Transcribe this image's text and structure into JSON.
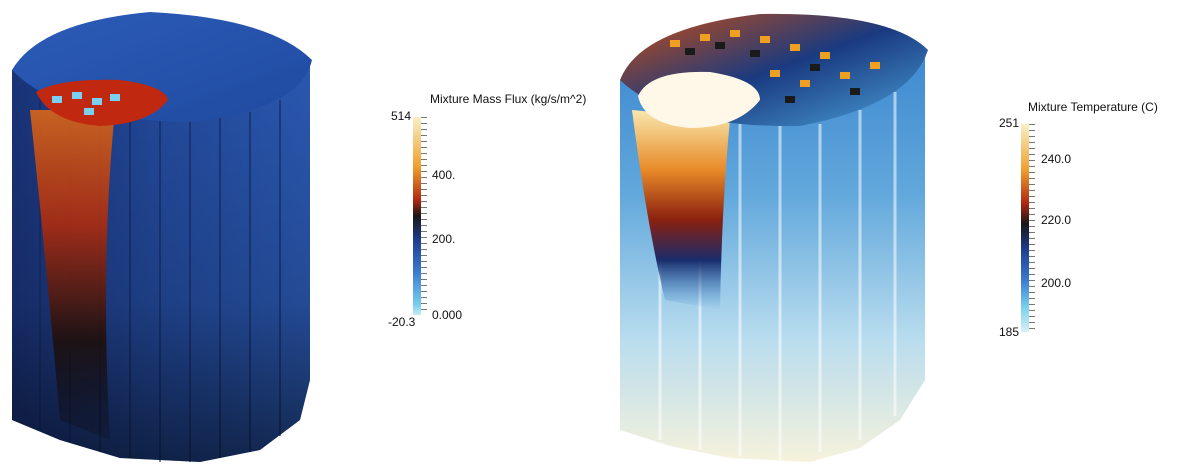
{
  "left_plot": {
    "colorbar": {
      "title": "Mixture Mass Flux (kg/s/m^2)",
      "max_label": "514",
      "min_label": "-20.3",
      "ticks": [
        "400.",
        "200.",
        "0.000"
      ],
      "colors": [
        "#f8f0c8",
        "#f0a030",
        "#b02810",
        "#181818",
        "#1e3c8c",
        "#3a7ad0",
        "#7ad0ee"
      ]
    }
  },
  "right_plot": {
    "colorbar": {
      "title": "Mixture Temperature (C)",
      "max_label": "251",
      "min_label": "185",
      "ticks": [
        "240.0",
        "220.0",
        "200.0"
      ],
      "colors": [
        "#f8f0c8",
        "#f0a030",
        "#b02810",
        "#181818",
        "#1e3c8c",
        "#3a7ad0",
        "#7ad0ee",
        "#d8f0f4"
      ]
    }
  }
}
